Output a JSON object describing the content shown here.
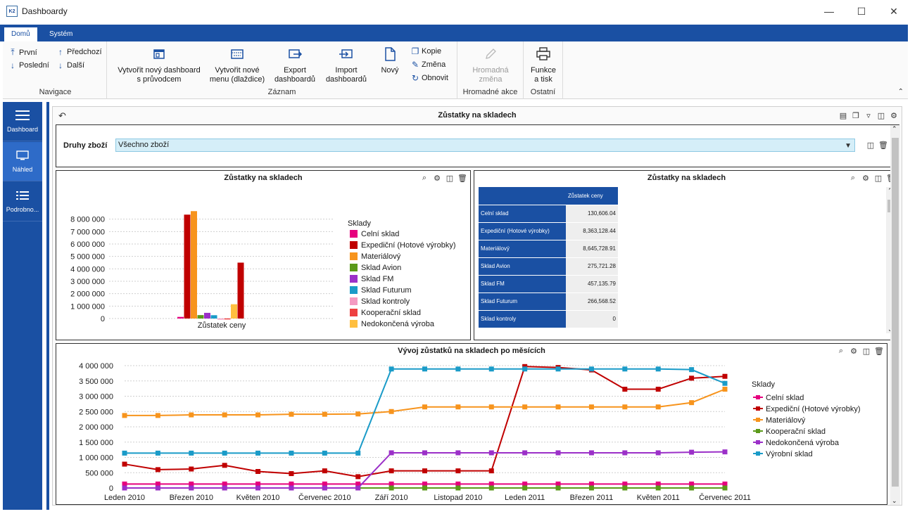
{
  "window": {
    "title": "Dashboardy",
    "logo": "K2",
    "minimize_icon": "minimize-icon",
    "maximize_icon": "maximize-icon",
    "close_icon": "close-icon"
  },
  "ribbon": {
    "tabs": [
      {
        "label": "Domů"
      },
      {
        "label": "Systém"
      }
    ],
    "groups": {
      "navigace": {
        "label": "Navigace",
        "first": "První",
        "last": "Poslední",
        "prev": "Předchozí",
        "next": "Další"
      },
      "zaznam": {
        "label": "Záznam",
        "wizard_1": "Vytvořit nový dashboard",
        "wizard_2": "s průvodcem",
        "menu_1": "Vytvořit nové",
        "menu_2": "menu (dlaždice)",
        "export_1": "Export",
        "export_2": "dashboardů",
        "import_1": "Import",
        "import_2": "dashboardů",
        "new": "Nový",
        "copy": "Kopie",
        "change": "Změna",
        "refresh": "Obnovit"
      },
      "hromadne": {
        "label": "Hromadné akce",
        "btn_1": "Hromadná",
        "btn_2": "změna"
      },
      "ostatni": {
        "label": "Ostatní",
        "btn_1": "Funkce",
        "btn_2": "a tisk"
      }
    }
  },
  "sidebar": {
    "items": [
      {
        "label": "Dashboard"
      },
      {
        "label": "Náhled"
      },
      {
        "label": "Podrobno..."
      }
    ]
  },
  "dashboard": {
    "title": "Zůstatky na skladech",
    "filter": {
      "label": "Druhy zboží",
      "value": "Všechno zboží"
    },
    "bar_panel_title": "Zůstatky na skladech",
    "table_panel_title": "Zůstatky na skladech",
    "line_panel_title": "Vývoj zůstatků na skladech po měsících"
  },
  "table": {
    "header": "Zůstatek ceny",
    "rows": [
      {
        "name": "Celní sklad",
        "value": "130,606.04"
      },
      {
        "name": "Expediční (Hotové výrobky)",
        "value": "8,363,128.44"
      },
      {
        "name": "Materiálový",
        "value": "8,645,728.91"
      },
      {
        "name": "Sklad Avion",
        "value": "275,721.28"
      },
      {
        "name": "Sklad FM",
        "value": "457,135.79"
      },
      {
        "name": "Sklad Futurum",
        "value": "266,568.52"
      },
      {
        "name": "Sklad kontroly",
        "value": "0"
      }
    ]
  },
  "chart_data": [
    {
      "type": "bar",
      "title": "Zůstatky na skladech",
      "categories": [
        "Zůstatek ceny"
      ],
      "legend_title": "Sklady",
      "ylim": [
        0,
        9000000
      ],
      "yticks": [
        "8 000 000",
        "7 000 000",
        "6 000 000",
        "5 000 000",
        "4 000 000",
        "3 000 000",
        "2 000 000",
        "1 000 000",
        "0"
      ],
      "series": [
        {
          "name": "Celní sklad",
          "color": "#e6007e",
          "values": [
            130606
          ]
        },
        {
          "name": "Expediční (Hotové výrobky)",
          "color": "#c00000",
          "values": [
            8363128
          ]
        },
        {
          "name": "Materiálový",
          "color": "#f7941d",
          "values": [
            8645729
          ]
        },
        {
          "name": "Sklad Avion",
          "color": "#5b9a1a",
          "values": [
            275721
          ]
        },
        {
          "name": "Sklad FM",
          "color": "#9b30c8",
          "values": [
            457136
          ]
        },
        {
          "name": "Sklad Futurum",
          "color": "#1a9bc8",
          "values": [
            266569
          ]
        },
        {
          "name": "Sklad kontroly",
          "color": "#f49ac1",
          "values": [
            0
          ]
        },
        {
          "name": "Kooperační sklad",
          "color": "#ee4040",
          "values": [
            10000
          ]
        },
        {
          "name": "Nedokončená výroba",
          "color": "#ffbf3f",
          "values": [
            1150000
          ]
        },
        {
          "name": "",
          "color": "#c00000",
          "values": [
            4500000
          ]
        }
      ]
    },
    {
      "type": "line",
      "title": "Vývoj zůstatků na skladech po měsících",
      "legend_title": "Sklady",
      "x": [
        "Leden 2010",
        "Únor 2010",
        "Březen 2010",
        "Duben 2010",
        "Květen 2010",
        "Červen 2010",
        "Červenec 2010",
        "Srpen 2010",
        "Září 2010",
        "Říjen 2010",
        "Listopad 2010",
        "Prosinec 2010",
        "Leden 2011",
        "Únor 2011",
        "Březen 2011",
        "Duben 2011",
        "Květen 2011",
        "Červen 2011",
        "Červenec 2011"
      ],
      "xtick_labels": [
        "Leden 2010",
        "",
        "Březen 2010",
        "",
        "Květen 2010",
        "",
        "Červenec 2010",
        "",
        "Září 2010",
        "",
        "Listopad 2010",
        "",
        "Leden 2011",
        "",
        "Březen 2011",
        "",
        "Květen 2011",
        "",
        "Červenec 2011"
      ],
      "ylim": [
        0,
        4000000
      ],
      "yticks": [
        "4 000 000",
        "3 500 000",
        "3 000 000",
        "2 500 000",
        "2 000 000",
        "1 500 000",
        "1 000 000",
        "500 000",
        "0"
      ],
      "series": [
        {
          "name": "Celní sklad",
          "color": "#e6007e",
          "values": [
            130000,
            130000,
            130000,
            130000,
            130000,
            130000,
            130000,
            130000,
            130000,
            130000,
            130000,
            130000,
            130000,
            130000,
            130000,
            130000,
            130000,
            130000,
            130000
          ]
        },
        {
          "name": "Expediční (Hotové výrobky)",
          "color": "#c00000",
          "values": [
            780000,
            600000,
            620000,
            740000,
            540000,
            470000,
            560000,
            370000,
            560000,
            560000,
            560000,
            560000,
            3970000,
            3940000,
            3860000,
            3230000,
            3230000,
            3590000,
            3650000
          ]
        },
        {
          "name": "Materiálový",
          "color": "#f7941d",
          "values": [
            2370000,
            2370000,
            2390000,
            2390000,
            2390000,
            2410000,
            2410000,
            2420000,
            2500000,
            2650000,
            2650000,
            2650000,
            2650000,
            2650000,
            2650000,
            2650000,
            2650000,
            2790000,
            3230000
          ]
        },
        {
          "name": "Kooperační sklad",
          "color": "#5b9a1a",
          "values": [
            0,
            0,
            0,
            0,
            0,
            0,
            0,
            0,
            0,
            0,
            0,
            0,
            0,
            0,
            0,
            0,
            0,
            0,
            0
          ]
        },
        {
          "name": "Nedokončená výroba",
          "color": "#9b30c8",
          "values": [
            0,
            0,
            0,
            0,
            0,
            0,
            0,
            0,
            1150000,
            1150000,
            1150000,
            1150000,
            1150000,
            1150000,
            1150000,
            1150000,
            1150000,
            1170000,
            1180000
          ]
        },
        {
          "name": "Výrobní sklad",
          "color": "#1a9bc8",
          "values": [
            1140000,
            1140000,
            1140000,
            1140000,
            1140000,
            1140000,
            1140000,
            1140000,
            3890000,
            3890000,
            3890000,
            3890000,
            3890000,
            3890000,
            3890000,
            3890000,
            3890000,
            3870000,
            3420000
          ]
        }
      ]
    }
  ]
}
